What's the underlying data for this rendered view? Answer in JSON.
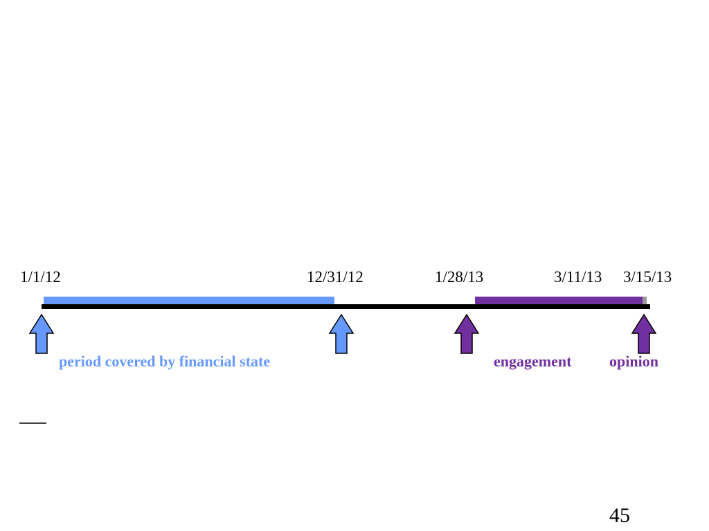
{
  "timeline": {
    "dates": [
      "1/1/12",
      "12/31/12",
      "1/28/13",
      "3/11/13",
      "3/15/13"
    ],
    "labels": [
      "period covered by financial state",
      "engagement",
      "opinion"
    ]
  },
  "page_number": "45"
}
